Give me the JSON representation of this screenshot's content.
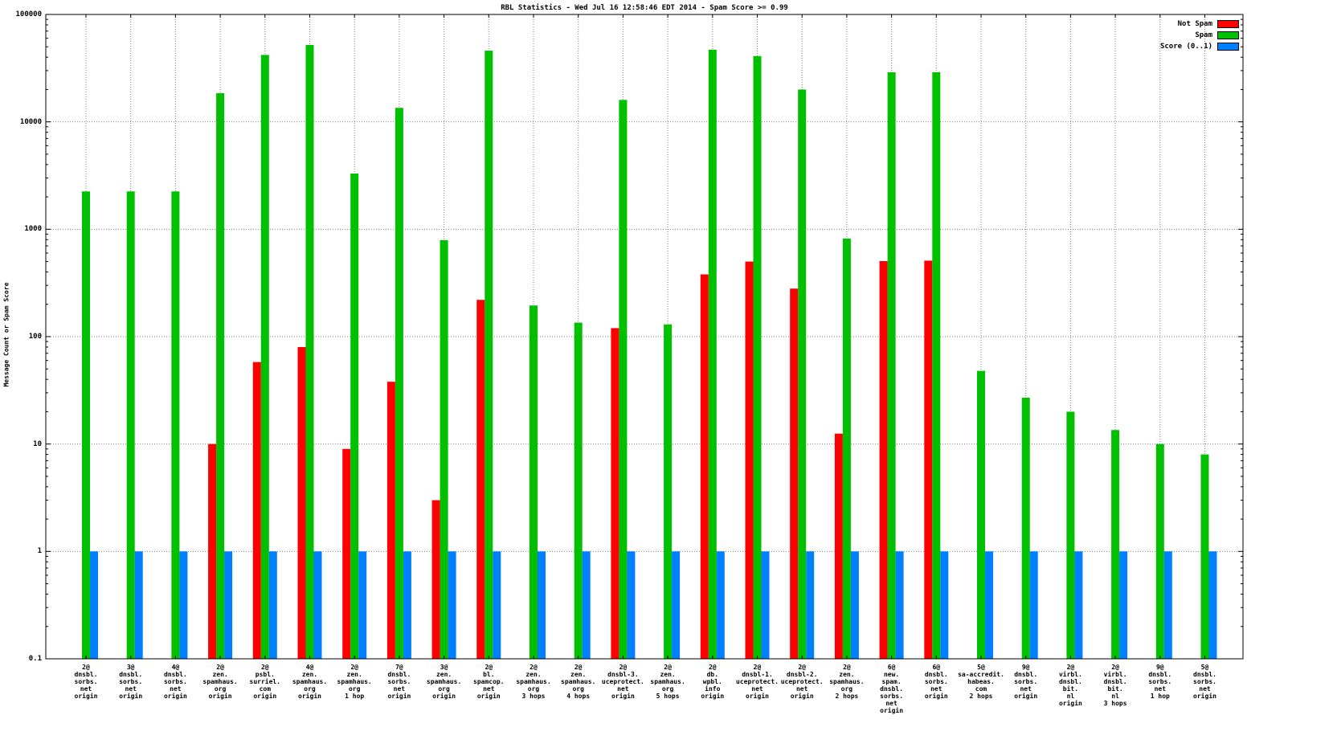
{
  "chart_data": {
    "type": "bar",
    "title": "RBL Statistics - Wed Jul 16 12:58:46 EDT 2014 - Spam Score >= 0.99",
    "ylabel": "Message Count or Spam Score",
    "xlabel": "",
    "y_scale": "log",
    "ylim": [
      0.1,
      100000
    ],
    "y_ticks": [
      0.1,
      1,
      10,
      100,
      1000,
      10000,
      100000
    ],
    "y_tick_labels": [
      "0.1",
      "1",
      "10",
      "100",
      "1000",
      "10000",
      "100000"
    ],
    "grid": true,
    "legend_position": "top-right-inside",
    "colors": {
      "not_spam": "#ff0000",
      "spam": "#00c000",
      "score": "#0080ff",
      "grid": "#808080",
      "border": "#000000"
    },
    "categories": [
      [
        "2@",
        "dnsbl.",
        "sorbs.",
        "net",
        "origin"
      ],
      [
        "3@",
        "dnsbl.",
        "sorbs.",
        "net",
        "origin"
      ],
      [
        "4@",
        "dnsbl.",
        "sorbs.",
        "net",
        "origin"
      ],
      [
        "2@",
        "zen.",
        "spamhaus.",
        "org",
        "origin"
      ],
      [
        "2@",
        "psbl.",
        "surriel.",
        "com",
        "origin"
      ],
      [
        "4@",
        "zen.",
        "spamhaus.",
        "org",
        "origin"
      ],
      [
        "2@",
        "zen.",
        "spamhaus.",
        "org",
        "1 hop"
      ],
      [
        "7@",
        "dnsbl.",
        "sorbs.",
        "net",
        "origin"
      ],
      [
        "3@",
        "zen.",
        "spamhaus.",
        "org",
        "origin"
      ],
      [
        "2@",
        "bl.",
        "spamcop.",
        "net",
        "origin"
      ],
      [
        "2@",
        "zen.",
        "spamhaus.",
        "org",
        "3 hops"
      ],
      [
        "2@",
        "zen.",
        "spamhaus.",
        "org",
        "4 hops"
      ],
      [
        "2@",
        "dnsbl-3.",
        "uceprotect.",
        "net",
        "origin"
      ],
      [
        "2@",
        "zen.",
        "spamhaus.",
        "org",
        "5 hops"
      ],
      [
        "2@",
        "db.",
        "wpbl.",
        "info",
        "origin"
      ],
      [
        "2@",
        "dnsbl-1.",
        "uceprotect.",
        "net",
        "origin"
      ],
      [
        "2@",
        "dnsbl-2.",
        "uceprotect.",
        "net",
        "origin"
      ],
      [
        "2@",
        "zen.",
        "spamhaus.",
        "org",
        "2 hops"
      ],
      [
        "6@",
        "new.",
        "spam.",
        "dnsbl.",
        "sorbs.",
        "net",
        "origin"
      ],
      [
        "6@",
        "dnsbl.",
        "sorbs.",
        "net",
        "origin"
      ],
      [
        "5@",
        "sa-accredit.",
        "habeas.",
        "com",
        "2 hops"
      ],
      [
        "9@",
        "dnsbl.",
        "sorbs.",
        "net",
        "origin"
      ],
      [
        "2@",
        "virbl.",
        "dnsbl.",
        "bit.",
        "nl",
        "origin"
      ],
      [
        "2@",
        "virbl.",
        "dnsbl.",
        "bit.",
        "nl",
        "3 hops"
      ],
      [
        "9@",
        "dnsbl.",
        "sorbs.",
        "net",
        "1 hop"
      ],
      [
        "5@",
        "dnsbl.",
        "sorbs.",
        "net",
        "origin"
      ]
    ],
    "series": [
      {
        "name": "Not Spam",
        "color_key": "not_spam",
        "values": [
          null,
          null,
          null,
          10,
          58,
          80,
          9,
          38,
          3,
          220,
          null,
          null,
          120,
          null,
          380,
          500,
          280,
          12.5,
          505,
          510,
          null,
          null,
          null,
          null,
          null,
          null
        ]
      },
      {
        "name": "Spam",
        "color_key": "spam",
        "values": [
          2250,
          2250,
          2250,
          18500,
          42000,
          52000,
          3300,
          13500,
          790,
          46000,
          195,
          135,
          16000,
          130,
          47000,
          41000,
          20000,
          820,
          29000,
          29000,
          48,
          27,
          20,
          13.5,
          10,
          8
        ]
      },
      {
        "name": "Score (0..1)",
        "color_key": "score",
        "values": [
          1,
          1,
          1,
          1,
          1,
          1,
          1,
          1,
          1,
          1,
          1,
          1,
          1,
          1,
          1,
          1,
          1,
          1,
          1,
          1,
          1,
          1,
          1,
          1,
          1,
          1
        ]
      }
    ]
  }
}
